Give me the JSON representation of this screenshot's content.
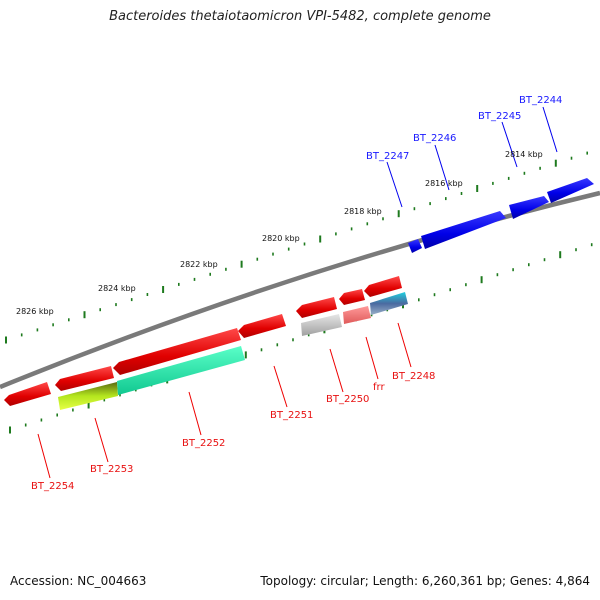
{
  "title": "Bacteroides thetaiotaomicron VPI-5482, complete genome",
  "footer": {
    "accession": "Accession: NC_004663",
    "summary": "Topology: circular; Length: 6,260,361 bp; Genes: 4,864"
  },
  "scale_labels": [
    "2814 kbp",
    "2816 kbp",
    "2818 kbp",
    "2820 kbp",
    "2822 kbp",
    "2824 kbp",
    "2826 kbp"
  ],
  "genes_top_strand": [
    {
      "name": "BT_2244",
      "color": "#1a1aff"
    },
    {
      "name": "BT_2245",
      "color": "#1a1aff"
    },
    {
      "name": "BT_2246",
      "color": "#1a1aff"
    },
    {
      "name": "BT_2247",
      "color": "#1a1aff"
    }
  ],
  "genes_bottom_strand": [
    {
      "name": "BT_2248",
      "color": "#e81010"
    },
    {
      "name": "frr",
      "color": "#e81010"
    },
    {
      "name": "BT_2250",
      "color": "#e81010"
    },
    {
      "name": "BT_2251",
      "color": "#e81010"
    },
    {
      "name": "BT_2252",
      "color": "#e81010"
    },
    {
      "name": "BT_2253",
      "color": "#e81010"
    },
    {
      "name": "BT_2254",
      "color": "#e81010"
    }
  ],
  "colors": {
    "top_strand": "#0000ee",
    "bottom_strand": "#ee0000",
    "backbone": "#808080",
    "tick": "#1e7a1e"
  }
}
